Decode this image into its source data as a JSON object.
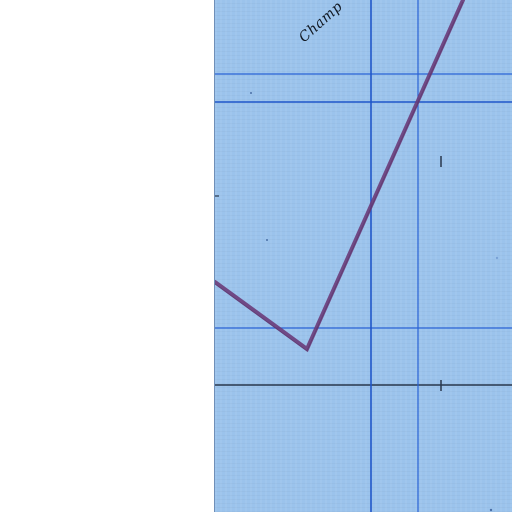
{
  "sheet": {
    "annotation": "Champ",
    "paper_color": "#9bc3ec",
    "line_color": "#1f56c9",
    "dark_line_color": "#28374c",
    "trace_color": "#6a3c7a"
  }
}
